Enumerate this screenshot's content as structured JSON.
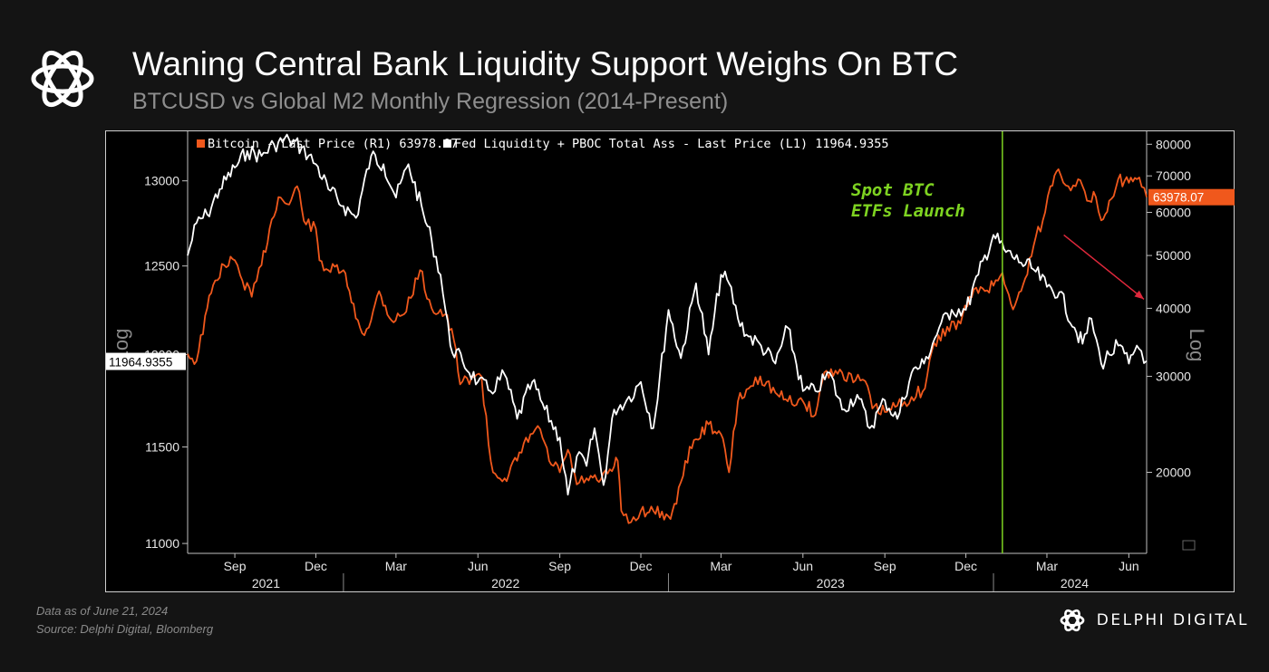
{
  "header": {
    "title": "Waning Central Bank Liquidity Support Weighs On BTC",
    "subtitle": "BTCUSD vs Global M2 Monthly Regression (2014-Present)"
  },
  "footer": {
    "data_as_of": "Data as of June 21, 2024",
    "source": "Source: Delphi Digital, Bloomberg",
    "brand": "DELPHI DIGITAL"
  },
  "colors": {
    "background": "#141414",
    "plot_bg": "#000000",
    "bitcoin": "#f0581c",
    "liquidity": "#ffffff",
    "etf_line": "#7ed321",
    "arrow": "#e0283c"
  },
  "icons": {
    "logo": "delphi-knot-icon",
    "arrow": "down-right-arrow"
  },
  "chart_data": {
    "type": "line",
    "legend_placement": "top-left",
    "left_axis": {
      "scale": "log",
      "label": "Log",
      "ticks": [
        11000,
        11500,
        12000,
        12500,
        13000
      ],
      "tick_labels": [
        "11000",
        "11500",
        "12000",
        "12500",
        "13000"
      ],
      "range": [
        10950,
        13300
      ]
    },
    "right_axis": {
      "scale": "log",
      "label": "Log",
      "ticks": [
        20000,
        30000,
        40000,
        50000,
        60000,
        70000,
        80000
      ],
      "tick_labels": [
        "20000",
        "30000",
        "40000",
        "50000",
        "60000",
        "70000",
        "80000"
      ],
      "range": [
        14200,
        84500
      ]
    },
    "x_axis": {
      "range": [
        "2021-07-10",
        "2024-06-21"
      ],
      "months": [
        {
          "label": "Sep",
          "date": "2021-09-01"
        },
        {
          "label": "Dec",
          "date": "2021-12-01"
        },
        {
          "label": "Mar",
          "date": "2022-03-01"
        },
        {
          "label": "Jun",
          "date": "2022-06-01"
        },
        {
          "label": "Sep",
          "date": "2022-09-01"
        },
        {
          "label": "Dec",
          "date": "2022-12-01"
        },
        {
          "label": "Mar",
          "date": "2023-03-01"
        },
        {
          "label": "Jun",
          "date": "2023-06-01"
        },
        {
          "label": "Sep",
          "date": "2023-09-01"
        },
        {
          "label": "Dec",
          "date": "2023-12-01"
        },
        {
          "label": "Mar",
          "date": "2024-03-01"
        },
        {
          "label": "Jun",
          "date": "2024-06-01"
        }
      ],
      "years": [
        {
          "label": "2021",
          "center": "2021-10-06"
        },
        {
          "label": "2022",
          "center": "2022-07-02"
        },
        {
          "label": "2023",
          "center": "2023-07-02"
        },
        {
          "label": "2024",
          "center": "2024-04-01"
        }
      ],
      "year_boundaries": [
        "2022-01-01",
        "2023-01-01",
        "2024-01-01"
      ]
    },
    "series": [
      {
        "name": "Bitcoin - Last Price (R1) 63978.07",
        "axis": "right",
        "last_value": "63978.07",
        "x": [
          "2021-07-10",
          "2021-07-20",
          "2021-08-01",
          "2021-08-10",
          "2021-08-20",
          "2021-09-01",
          "2021-09-07",
          "2021-09-20",
          "2021-10-01",
          "2021-10-10",
          "2021-10-20",
          "2021-11-01",
          "2021-11-10",
          "2021-11-20",
          "2021-12-01",
          "2021-12-05",
          "2021-12-15",
          "2022-01-01",
          "2022-01-10",
          "2022-01-22",
          "2022-02-01",
          "2022-02-10",
          "2022-02-24",
          "2022-03-10",
          "2022-03-28",
          "2022-04-10",
          "2022-04-25",
          "2022-05-05",
          "2022-05-12",
          "2022-05-25",
          "2022-06-05",
          "2022-06-13",
          "2022-06-18",
          "2022-07-01",
          "2022-07-15",
          "2022-07-30",
          "2022-08-10",
          "2022-08-20",
          "2022-09-01",
          "2022-09-10",
          "2022-09-20",
          "2022-10-01",
          "2022-10-15",
          "2022-11-01",
          "2022-11-05",
          "2022-11-09",
          "2022-11-20",
          "2022-12-01",
          "2022-12-15",
          "2023-01-01",
          "2023-01-10",
          "2023-01-20",
          "2023-02-01",
          "2023-02-15",
          "2023-03-01",
          "2023-03-10",
          "2023-03-20",
          "2023-04-01",
          "2023-04-14",
          "2023-05-01",
          "2023-05-15",
          "2023-06-01",
          "2023-06-15",
          "2023-06-25",
          "2023-07-15",
          "2023-07-30",
          "2023-08-10",
          "2023-08-18",
          "2023-09-01",
          "2023-09-15",
          "2023-10-01",
          "2023-10-16",
          "2023-10-24",
          "2023-11-10",
          "2023-11-25",
          "2023-12-05",
          "2023-12-20",
          "2024-01-01",
          "2024-01-11",
          "2024-01-23",
          "2024-02-01",
          "2024-02-15",
          "2024-02-28",
          "2024-03-05",
          "2024-03-14",
          "2024-03-25",
          "2024-04-05",
          "2024-04-15",
          "2024-04-25",
          "2024-05-01",
          "2024-05-10",
          "2024-05-20",
          "2024-06-01",
          "2024-06-10",
          "2024-06-21"
        ],
        "values": [
          33000,
          32000,
          40000,
          45000,
          48000,
          49000,
          46000,
          42000,
          48000,
          56000,
          64000,
          62000,
          67000,
          57000,
          56000,
          49000,
          47000,
          47000,
          41000,
          36000,
          38000,
          43000,
          38000,
          39000,
          47000,
          40000,
          39000,
          35000,
          29000,
          30000,
          30000,
          22500,
          20000,
          19500,
          21000,
          23500,
          24000,
          21000,
          20000,
          22000,
          19000,
          19500,
          19200,
          20500,
          21000,
          17000,
          16200,
          17000,
          17000,
          16600,
          17500,
          21000,
          23000,
          24500,
          23500,
          20000,
          27000,
          28500,
          30000,
          28000,
          27000,
          27000,
          25500,
          30500,
          30500,
          29500,
          29400,
          26200,
          25800,
          26500,
          27500,
          28500,
          33500,
          37000,
          37500,
          42000,
          43500,
          44000,
          46500,
          39800,
          43000,
          52000,
          60000,
          67000,
          72000,
          67000,
          69000,
          63000,
          64000,
          58000,
          63000,
          69000,
          68000,
          69000,
          63978.07
        ]
      },
      {
        "name": "Fed Liquidity + PBOC Total Ass - Last Price (L1) 11964.9355",
        "axis": "left",
        "last_value": "11964.9355",
        "x": [
          "2021-07-10",
          "2021-07-20",
          "2021-08-01",
          "2021-08-15",
          "2021-09-01",
          "2021-09-15",
          "2021-10-01",
          "2021-10-15",
          "2021-11-01",
          "2021-11-15",
          "2021-12-01",
          "2021-12-15",
          "2022-01-01",
          "2022-01-15",
          "2022-02-01",
          "2022-02-15",
          "2022-03-01",
          "2022-03-15",
          "2022-04-01",
          "2022-04-10",
          "2022-04-20",
          "2022-05-01",
          "2022-05-15",
          "2022-06-01",
          "2022-06-15",
          "2022-07-01",
          "2022-07-15",
          "2022-08-01",
          "2022-08-15",
          "2022-09-01",
          "2022-09-10",
          "2022-09-20",
          "2022-10-01",
          "2022-10-10",
          "2022-10-20",
          "2022-11-01",
          "2022-11-15",
          "2022-12-01",
          "2022-12-15",
          "2023-01-01",
          "2023-01-15",
          "2023-02-01",
          "2023-02-15",
          "2023-03-01",
          "2023-03-10",
          "2023-03-20",
          "2023-04-01",
          "2023-04-15",
          "2023-05-01",
          "2023-05-15",
          "2023-06-01",
          "2023-06-15",
          "2023-07-01",
          "2023-07-15",
          "2023-08-01",
          "2023-08-15",
          "2023-09-01",
          "2023-09-15",
          "2023-10-01",
          "2023-10-15",
          "2023-11-01",
          "2023-11-15",
          "2023-12-01",
          "2023-12-15",
          "2024-01-01",
          "2024-01-15",
          "2024-02-01",
          "2024-02-15",
          "2024-03-01",
          "2024-03-15",
          "2024-04-01",
          "2024-04-10",
          "2024-04-20",
          "2024-05-01",
          "2024-05-10",
          "2024-05-20",
          "2024-06-01",
          "2024-06-10",
          "2024-06-15",
          "2024-06-21"
        ],
        "values": [
          12560,
          12750,
          12800,
          12950,
          13080,
          13180,
          13150,
          13220,
          13250,
          13200,
          13100,
          12950,
          12850,
          12780,
          13150,
          13100,
          12900,
          13100,
          12800,
          12650,
          12450,
          12050,
          11960,
          11850,
          11800,
          11890,
          11650,
          11850,
          11700,
          11550,
          11250,
          11450,
          11400,
          11600,
          11300,
          11700,
          11750,
          11850,
          11600,
          12250,
          11980,
          12400,
          12000,
          12450,
          12400,
          12200,
          12100,
          12050,
          11950,
          12150,
          11800,
          11800,
          11900,
          11700,
          11780,
          11600,
          11750,
          11650,
          11900,
          11950,
          12150,
          12250,
          12250,
          12450,
          12680,
          12580,
          12520,
          12480,
          12380,
          12350,
          12150,
          12060,
          12200,
          11950,
          12000,
          12050,
          11950,
          12050,
          12020,
          11964.9355
        ]
      }
    ],
    "annotations": [
      {
        "text_lines": [
          "Spot BTC",
          "ETFs Launch"
        ],
        "date": "2024-01-11",
        "type": "vertical-line"
      },
      {
        "type": "arrow",
        "description": "downward trend arrow",
        "from": {
          "date": "2024-03-20",
          "value_left": 12680
        },
        "to": {
          "date": "2024-06-18",
          "value_left": 12310
        }
      }
    ],
    "grid": false
  }
}
